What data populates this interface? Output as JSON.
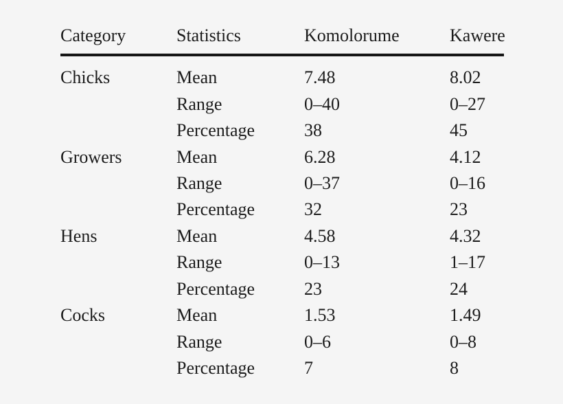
{
  "page": {
    "background_color": "#f5f5f5",
    "text_color": "#1b1b1b",
    "rule_color": "#161616"
  },
  "table": {
    "columns": [
      "Category",
      "Statistics",
      "Komolorume",
      "Kawere"
    ],
    "groups": [
      {
        "category": "Chicks",
        "rows": [
          {
            "statistic": "Mean",
            "komolorume": "7.48",
            "kawere": "8.02"
          },
          {
            "statistic": "Range",
            "komolorume": "0–40",
            "kawere": "0–27"
          },
          {
            "statistic": "Percentage",
            "komolorume": "38",
            "kawere": "45"
          }
        ]
      },
      {
        "category": "Growers",
        "rows": [
          {
            "statistic": "Mean",
            "komolorume": "6.28",
            "kawere": "4.12"
          },
          {
            "statistic": "Range",
            "komolorume": "0–37",
            "kawere": "0–16"
          },
          {
            "statistic": "Percentage",
            "komolorume": "32",
            "kawere": "23"
          }
        ]
      },
      {
        "category": "Hens",
        "rows": [
          {
            "statistic": "Mean",
            "komolorume": "4.58",
            "kawere": "4.32"
          },
          {
            "statistic": "Range",
            "komolorume": "0–13",
            "kawere": "1–17"
          },
          {
            "statistic": "Percentage",
            "komolorume": "23",
            "kawere": "24"
          }
        ]
      },
      {
        "category": "Cocks",
        "rows": [
          {
            "statistic": "Mean",
            "komolorume": "1.53",
            "kawere": "1.49"
          },
          {
            "statistic": "Range",
            "komolorume": "0–6",
            "kawere": "0–8"
          },
          {
            "statistic": "Percentage",
            "komolorume": "7",
            "kawere": "8"
          }
        ]
      }
    ]
  },
  "chart_data": {
    "type": "table",
    "columns": [
      "Category",
      "Statistics",
      "Komolorume",
      "Kawere"
    ],
    "rows": [
      [
        "Chicks",
        "Mean",
        "7.48",
        "8.02"
      ],
      [
        "",
        "Range",
        "0–40",
        "0–27"
      ],
      [
        "",
        "Percentage",
        "38",
        "45"
      ],
      [
        "Growers",
        "Mean",
        "6.28",
        "4.12"
      ],
      [
        "",
        "Range",
        "0–37",
        "0–16"
      ],
      [
        "",
        "Percentage",
        "32",
        "23"
      ],
      [
        "Hens",
        "Mean",
        "4.58",
        "4.32"
      ],
      [
        "",
        "Range",
        "0–13",
        "1–17"
      ],
      [
        "",
        "Percentage",
        "23",
        "24"
      ],
      [
        "Cocks",
        "Mean",
        "1.53",
        "1.49"
      ],
      [
        "",
        "Range",
        "0–6",
        "0–8"
      ],
      [
        "",
        "Percentage",
        "7",
        "8"
      ]
    ]
  }
}
